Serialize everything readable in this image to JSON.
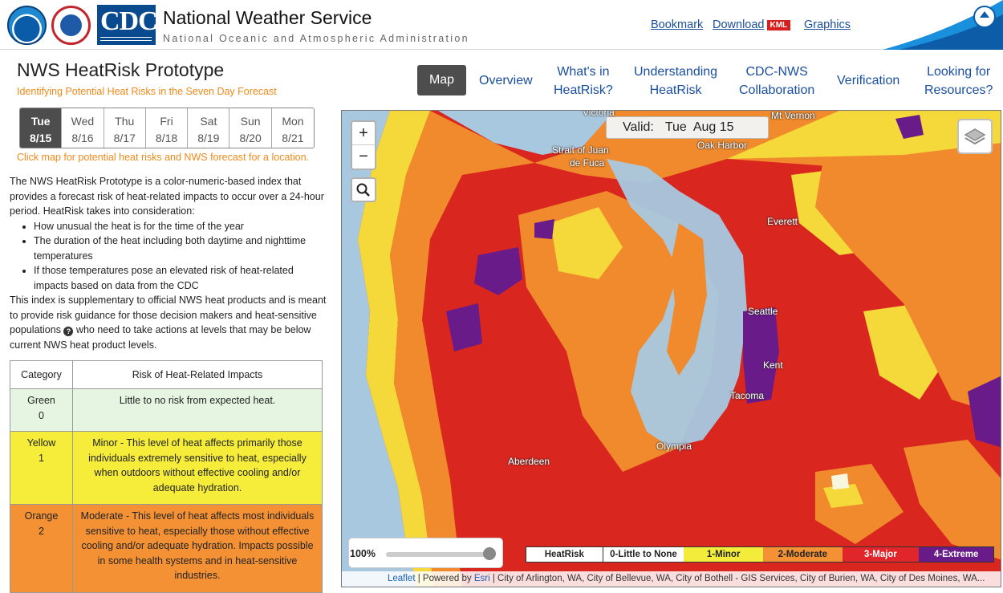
{
  "header": {
    "org_title": "National Weather Service",
    "org_subtitle": "National Oceanic and Atmospheric Administration",
    "cdc_logo_text": "CDC",
    "links": {
      "bookmark": "Bookmark",
      "download": "Download",
      "kml": "KML",
      "graphics": "Graphics"
    }
  },
  "app": {
    "title": "NWS HeatRisk Prototype",
    "subtitle": "Identifying Potential Heat Risks in the Seven Day Forecast",
    "click_note": "Click map for potential heat risks and NWS forecast for a location."
  },
  "nav": {
    "map": "Map",
    "overview": "Overview",
    "whats_in_1": "What's in",
    "whats_in_2": "HeatRisk?",
    "understanding_1": "Understanding",
    "understanding_2": "HeatRisk",
    "cdc_1": "CDC-NWS",
    "cdc_2": "Collaboration",
    "verification": "Verification",
    "resources_1": "Looking for",
    "resources_2": "Resources?"
  },
  "days": [
    {
      "day": "Tue",
      "date": "8/15"
    },
    {
      "day": "Wed",
      "date": "8/16"
    },
    {
      "day": "Thu",
      "date": "8/17"
    },
    {
      "day": "Fri",
      "date": "8/18"
    },
    {
      "day": "Sat",
      "date": "8/19"
    },
    {
      "day": "Sun",
      "date": "8/20"
    },
    {
      "day": "Mon",
      "date": "8/21"
    }
  ],
  "description": {
    "intro": "The NWS HeatRisk Prototype is a color-numeric-based index that provides a forecast risk of heat-related impacts to occur over a 24-hour period. HeatRisk takes into consideration:",
    "bullet_1": "How unusual the heat is for the time of the year",
    "bullet_2": "The duration of the heat including both daytime and nighttime temperatures",
    "bullet_3": "If those temperatures pose an elevated risk of heat-related impacts based on data from the CDC",
    "outro_1": "This index is supplementary to official NWS heat products and is meant to provide risk guidance for those decision makers and heat-sensitive populations",
    "outro_2": "who need to take actions at levels that may be below current NWS heat product levels."
  },
  "table": {
    "header_category": "Category",
    "header_risk": "Risk of Heat-Related Impacts",
    "rows": [
      {
        "name": "Green",
        "level": "0",
        "text": "Little to no risk from expected heat.",
        "color": "#e6f5e2"
      },
      {
        "name": "Yellow",
        "level": "1",
        "text": "Minor - This level of heat affects primarily those individuals extremely sensitive to heat, especially when outdoors without effective cooling and/or adequate hydration.",
        "color": "#f5ed3a"
      },
      {
        "name": "Orange",
        "level": "2",
        "text": "Moderate - This level of heat affects most individuals sensitive to heat, especially those without effective cooling and/or adequate hydration. Impacts possible in some health systems and in heat-sensitive industries.",
        "color": "#f39134"
      }
    ]
  },
  "map": {
    "valid_label": "Valid:",
    "valid_date": "Tue  Aug 15",
    "zoom_in": "+",
    "zoom_out": "−",
    "opacity_value": "100%",
    "opacity_fraction": 1.0,
    "cities": {
      "victoria": "Victoria",
      "mt_vernon": "Mt Vernon",
      "strait_1": "Strait of Juan",
      "strait_2": "de Fuca",
      "oak_harbor": "Oak Harbor",
      "everett": "Everett",
      "seattle": "Seattle",
      "kent": "Kent",
      "tacoma": "Tacoma",
      "olympia": "Olympia",
      "aberdeen": "Aberdeen"
    },
    "legend": [
      {
        "label": "HeatRisk",
        "color": "#ffffff"
      },
      {
        "label": "0-Little to None",
        "color": "#ffffff"
      },
      {
        "label": "1-Minor",
        "color": "#f3ec3b"
      },
      {
        "label": "2-Moderate",
        "color": "#f39134"
      },
      {
        "label": "3-Major",
        "color": "#e0262b"
      },
      {
        "label": "4-Extreme",
        "color": "#6a1b8a"
      }
    ],
    "attribution": {
      "leaflet": "Leaflet",
      "powered": "| Powered by",
      "esri": "Esri",
      "sources": "| City of Arlington, WA, City of Bellevue, WA, City of Bothell - GIS Services, City of Burien, WA, City of Des Moines, WA..."
    }
  },
  "colors": {
    "accent_orange": "#f08a1a",
    "link_blue": "#1a4fa0",
    "active_gray": "#4d4d4d"
  }
}
